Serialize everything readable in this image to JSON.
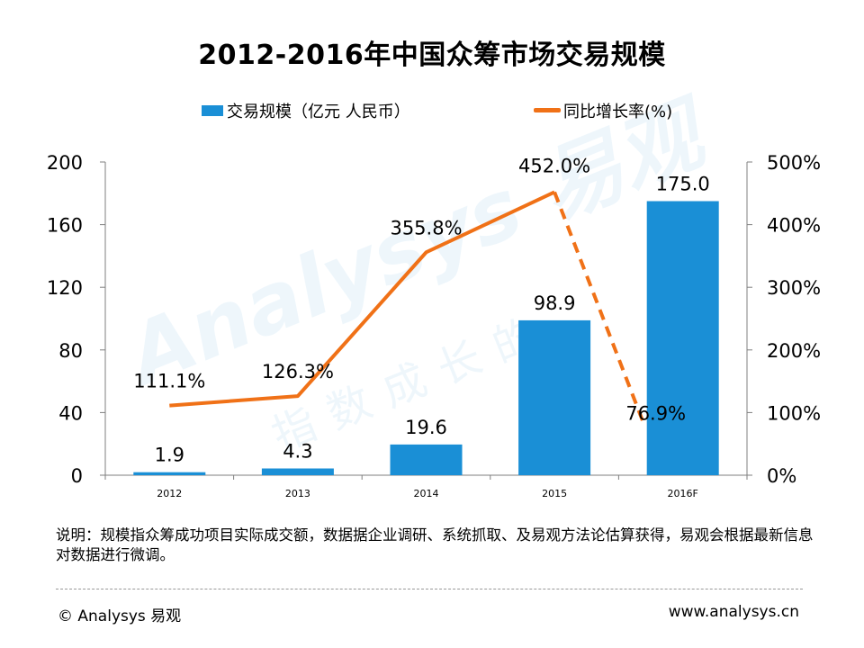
{
  "page": {
    "title": "2012-2016年中国众筹市场交易规模",
    "note": "说明：规模指众筹成功项目实际成交额，数据据企业调研、系统抓取、及易观方法论估算获得，易观会根据最新信息对数据进行微调。",
    "footer_left": "© Analysys 易观",
    "footer_right": "www.analysys.cn",
    "watermark": "Analysys 易观",
    "watermark_sub": "指数成长的"
  },
  "colors": {
    "bar": "#1a8fd6",
    "line": "#f07117",
    "axis": "#7f7f7f"
  },
  "chart_data": {
    "type": "bar",
    "title": "2012-2016年中国众筹市场交易规模",
    "categories": [
      "2012",
      "2013",
      "2014",
      "2015",
      "2016F"
    ],
    "series": [
      {
        "name": "交易规模（亿元 人民币）",
        "type": "bar",
        "axis": "left",
        "values": [
          1.9,
          4.3,
          19.6,
          98.9,
          175.0
        ],
        "labels": [
          "1.9",
          "4.3",
          "19.6",
          "98.9",
          "175.0"
        ]
      },
      {
        "name": "同比增长率(%)",
        "type": "line",
        "axis": "right",
        "values": [
          111.1,
          126.3,
          355.8,
          452.0,
          76.9
        ],
        "labels": [
          "111.1%",
          "126.3%",
          "355.8%",
          "452.0%",
          "76.9%"
        ],
        "dashed_last_segment": true
      }
    ],
    "y_left": {
      "min": 0,
      "max": 200,
      "ticks": [
        0,
        40,
        80,
        120,
        160,
        200
      ],
      "tick_labels": [
        "0",
        "40",
        "80",
        "120",
        "160",
        "200"
      ]
    },
    "y_right": {
      "min": 0,
      "max": 500,
      "ticks": [
        0,
        100,
        200,
        300,
        400,
        500
      ],
      "tick_labels": [
        "0%",
        "100%",
        "200%",
        "300%",
        "400%",
        "500%"
      ]
    },
    "legend_position": "top"
  }
}
